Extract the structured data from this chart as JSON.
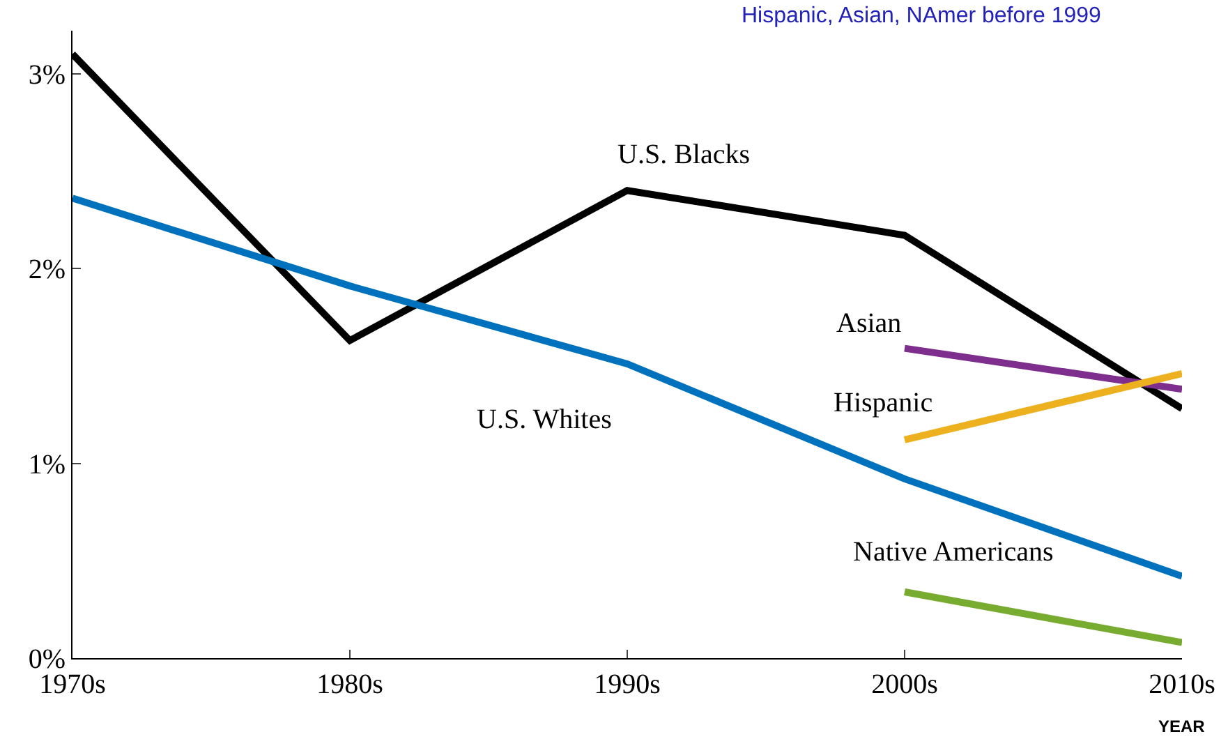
{
  "chart_data": {
    "type": "line",
    "xlabel": "YEAR",
    "categories": [
      "1970s",
      "1980s",
      "1990s",
      "2000s",
      "2010s"
    ],
    "series": [
      {
        "name": "U.S. Blacks",
        "color": "#000000",
        "values": [
          3.1,
          1.63,
          2.4,
          2.17,
          1.28
        ]
      },
      {
        "name": "U.S. Whites",
        "color": "#0072bd",
        "values": [
          2.36,
          1.91,
          1.51,
          0.92,
          0.42
        ]
      },
      {
        "name": "Asian",
        "color": "#7e2f8e",
        "values": [
          null,
          null,
          null,
          1.59,
          1.38
        ]
      },
      {
        "name": "Hispanic",
        "color": "#edb120",
        "values": [
          null,
          null,
          null,
          1.12,
          1.46
        ]
      },
      {
        "name": "Native Americans",
        "color": "#77ac30",
        "values": [
          null,
          null,
          null,
          0.34,
          0.08
        ]
      }
    ],
    "ylim": [
      0,
      3.22
    ],
    "yticks": [
      {
        "value": 0,
        "label": "0%"
      },
      {
        "value": 1,
        "label": "1%"
      },
      {
        "value": 2,
        "label": "2%"
      },
      {
        "value": 3,
        "label": "3%"
      }
    ],
    "annotations": [
      "Hispanic, Asian, NAmer before 1999"
    ],
    "grid": false,
    "legend": false,
    "marker": "none",
    "line_style": "solid"
  }
}
